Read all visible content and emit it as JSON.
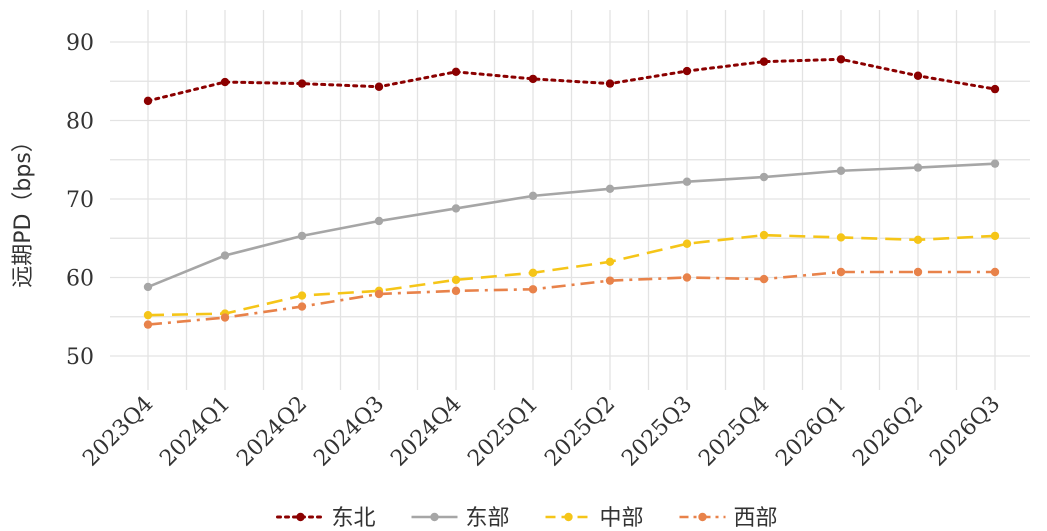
{
  "chart_data": {
    "type": "line",
    "title": "",
    "xlabel": "",
    "ylabel": "远期PD（bps）",
    "categories": [
      "2023Q4",
      "2024Q1",
      "2024Q2",
      "2024Q3",
      "2024Q4",
      "2025Q1",
      "2025Q2",
      "2025Q3",
      "2025Q4",
      "2026Q1",
      "2026Q2",
      "2026Q3"
    ],
    "ylim": [
      45,
      93
    ],
    "yticks": [
      50,
      60,
      70,
      80,
      90
    ],
    "grid": true,
    "legend_position": "bottom",
    "series": [
      {
        "name": "东北",
        "color": "#8b0000",
        "line_style": "dotted",
        "values": [
          82.5,
          84.9,
          84.7,
          84.3,
          86.2,
          85.3,
          84.7,
          86.3,
          87.5,
          87.8,
          85.7,
          84.0
        ]
      },
      {
        "name": "东部",
        "color": "#a6a6a6",
        "line_style": "solid",
        "values": [
          58.8,
          62.8,
          65.3,
          67.2,
          68.8,
          70.4,
          71.3,
          72.2,
          72.8,
          73.6,
          74.0,
          74.5
        ]
      },
      {
        "name": "中部",
        "color": "#f5c518",
        "line_style": "dashed",
        "values": [
          55.2,
          55.4,
          57.7,
          58.3,
          59.7,
          60.6,
          62.0,
          64.3,
          65.4,
          65.1,
          64.8,
          65.3
        ]
      },
      {
        "name": "西部",
        "color": "#e8824a",
        "line_style": "dashdot",
        "values": [
          54.0,
          54.9,
          56.3,
          57.9,
          58.3,
          58.5,
          59.6,
          60.0,
          59.8,
          60.7,
          60.7,
          60.7
        ]
      }
    ]
  }
}
